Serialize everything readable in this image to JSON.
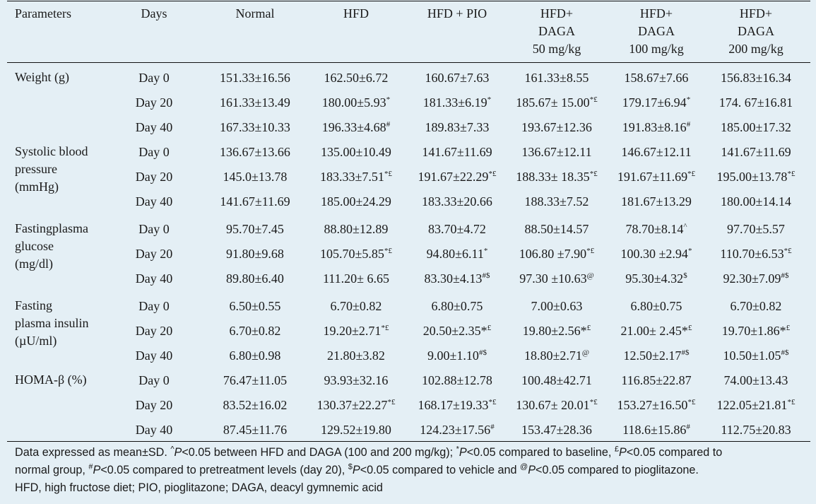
{
  "table": {
    "headers": {
      "parameters": "Parameters",
      "days": "Days",
      "normal": "Normal",
      "hfd": "HFD",
      "hfd_pio": "HFD + PIO",
      "daga50": [
        "HFD+",
        "DAGA",
        "50 mg/kg"
      ],
      "daga100": [
        "HFD+",
        "DAGA",
        "100 mg/kg"
      ],
      "daga200": [
        "HFD+",
        "DAGA",
        "200 mg/kg"
      ]
    },
    "groups": [
      {
        "param": [
          "Weight (g)"
        ],
        "rows": [
          {
            "day": "Day 0",
            "v": [
              [
                "151.33±16.56",
                ""
              ],
              [
                "162.50±6.72",
                ""
              ],
              [
                "160.67±7.63",
                ""
              ],
              [
                "161.33±8.55",
                ""
              ],
              [
                "158.67±7.66",
                ""
              ],
              [
                "156.83±16.34",
                ""
              ]
            ]
          },
          {
            "day": "Day 20",
            "v": [
              [
                "161.33±13.49",
                ""
              ],
              [
                "180.00±5.93",
                "*"
              ],
              [
                "181.33±6.19",
                "*"
              ],
              [
                "185.67± 15.00",
                "*£"
              ],
              [
                "179.17±6.94",
                "*"
              ],
              [
                "174. 67±16.81",
                ""
              ]
            ]
          },
          {
            "day": "Day 40",
            "v": [
              [
                "167.33±10.33",
                ""
              ],
              [
                "196.33±4.68",
                "#"
              ],
              [
                "189.83±7.33",
                ""
              ],
              [
                "193.67±12.36",
                ""
              ],
              [
                "191.83±8.16",
                "#"
              ],
              [
                "185.00±17.32",
                ""
              ]
            ]
          }
        ]
      },
      {
        "param": [
          "Systolic blood",
          "pressure",
          "(mmHg)"
        ],
        "rows": [
          {
            "day": "Day 0",
            "v": [
              [
                "136.67±13.66",
                ""
              ],
              [
                "135.00±10.49",
                ""
              ],
              [
                "141.67±11.69",
                ""
              ],
              [
                "136.67±12.11",
                ""
              ],
              [
                "146.67±12.11",
                ""
              ],
              [
                "141.67±11.69",
                ""
              ]
            ]
          },
          {
            "day": "Day 20",
            "v": [
              [
                "145.0±13.78",
                ""
              ],
              [
                "183.33±7.51",
                "*£"
              ],
              [
                "191.67±22.29",
                "*£"
              ],
              [
                "188.33± 18.35",
                "*£"
              ],
              [
                "191.67±11.69",
                "*£"
              ],
              [
                "195.00±13.78",
                "*£"
              ]
            ]
          },
          {
            "day": "Day 40",
            "v": [
              [
                "141.67±11.69",
                ""
              ],
              [
                "185.00±24.29",
                ""
              ],
              [
                "183.33±20.66",
                ""
              ],
              [
                "188.33±7.52",
                ""
              ],
              [
                "181.67±13.29",
                ""
              ],
              [
                "180.00±14.14",
                ""
              ]
            ]
          }
        ]
      },
      {
        "param": [
          "Fastingplasma",
          "glucose",
          "(mg/dl)"
        ],
        "rows": [
          {
            "day": "Day 0",
            "v": [
              [
                "95.70±7.45",
                ""
              ],
              [
                "88.80±12.89",
                ""
              ],
              [
                "83.70±4.72",
                ""
              ],
              [
                "88.50±14.57",
                ""
              ],
              [
                "78.70±8.14",
                "^"
              ],
              [
                "97.70±5.57",
                ""
              ]
            ]
          },
          {
            "day": "Day 20",
            "v": [
              [
                "91.80±9.68",
                ""
              ],
              [
                "105.70±5.85",
                "*£"
              ],
              [
                "94.80±6.11",
                "*"
              ],
              [
                "106.80 ±7.90",
                "*£"
              ],
              [
                "100.30 ±2.94",
                "*"
              ],
              [
                "110.70±6.53",
                "*£"
              ]
            ]
          },
          {
            "day": "Day 40",
            "v": [
              [
                "89.80±6.40",
                ""
              ],
              [
                "111.20± 6.65",
                ""
              ],
              [
                "83.30±4.13",
                "#$"
              ],
              [
                "97.30 ±10.63",
                "@"
              ],
              [
                "95.30±4.32",
                "$"
              ],
              [
                "92.30±7.09",
                "#$"
              ]
            ]
          }
        ]
      },
      {
        "param": [
          "Fasting",
          "plasma insulin",
          "(µU/ml)"
        ],
        "rows": [
          {
            "day": "Day 0",
            "v": [
              [
                "6.50±0.55",
                ""
              ],
              [
                "6.70±0.82",
                ""
              ],
              [
                "6.80±0.75",
                ""
              ],
              [
                "7.00±0.63",
                ""
              ],
              [
                "6.80±0.75",
                ""
              ],
              [
                "6.70±0.82",
                ""
              ]
            ]
          },
          {
            "day": "Day 20",
            "v": [
              [
                "6.70±0.82",
                ""
              ],
              [
                "19.20±2.71",
                "*£"
              ],
              [
                "20.50±2.35*",
                "£"
              ],
              [
                "19.80±2.56*",
                "£"
              ],
              [
                "21.00± 2.45*",
                "£"
              ],
              [
                "19.70±1.86*",
                "£"
              ]
            ]
          },
          {
            "day": "Day 40",
            "v": [
              [
                "6.80±0.98",
                ""
              ],
              [
                "21.80±3.82",
                ""
              ],
              [
                "9.00±1.10",
                "#$"
              ],
              [
                "18.80±2.71",
                "@"
              ],
              [
                "12.50±2.17",
                "#$"
              ],
              [
                "10.50±1.05",
                "#$"
              ]
            ]
          }
        ]
      },
      {
        "param": [
          "HOMA-β (%)"
        ],
        "rows": [
          {
            "day": "Day 0",
            "v": [
              [
                "76.47±11.05",
                ""
              ],
              [
                "93.93±32.16",
                ""
              ],
              [
                "102.88±12.78",
                ""
              ],
              [
                "100.48±42.71",
                ""
              ],
              [
                "116.85±22.87",
                ""
              ],
              [
                "74.00±13.43",
                ""
              ]
            ]
          },
          {
            "day": "Day 20",
            "v": [
              [
                "83.52±16.02",
                ""
              ],
              [
                "130.37±22.27",
                "*£"
              ],
              [
                "168.17±19.33",
                "*£"
              ],
              [
                "130.67± 20.01",
                "*£"
              ],
              [
                "153.27±16.50",
                "*£"
              ],
              [
                "122.05±21.81",
                "*£"
              ]
            ]
          },
          {
            "day": "Day 40",
            "v": [
              [
                "87.45±11.76",
                ""
              ],
              [
                "129.52±19.80",
                ""
              ],
              [
                "124.23±17.56",
                "#"
              ],
              [
                "153.47±28.36",
                ""
              ],
              [
                "118.6±15.86",
                "#"
              ],
              [
                "112.75±20.83",
                ""
              ]
            ]
          }
        ]
      }
    ]
  },
  "footnote": {
    "line1_a": "Data expressed as mean±SD. ",
    "line1_b": "^",
    "line1_c": "P",
    "line1_d": "<0.05 between HFD and DAGA (100 and 200 mg/kg); ",
    "line1_e": "*",
    "line1_f": "P",
    "line1_g": "<0.05 compared to baseline, ",
    "line1_h": "£",
    "line1_i": "P",
    "line1_j": "<0.05 compared to",
    "line2_a": "normal group, ",
    "line2_b": "#",
    "line2_c": "P",
    "line2_d": "<0.05 compared to pretreatment levels (day 20), ",
    "line2_e": "$",
    "line2_f": "P",
    "line2_g": "<0.05 compared to vehicle and ",
    "line2_h": "@",
    "line2_i": "P",
    "line2_j": "<0.05 compared to pioglitazone.",
    "line3": "HFD, high fructose diet; PIO, pioglitazone; DAGA, deacyl gymnemic acid"
  }
}
